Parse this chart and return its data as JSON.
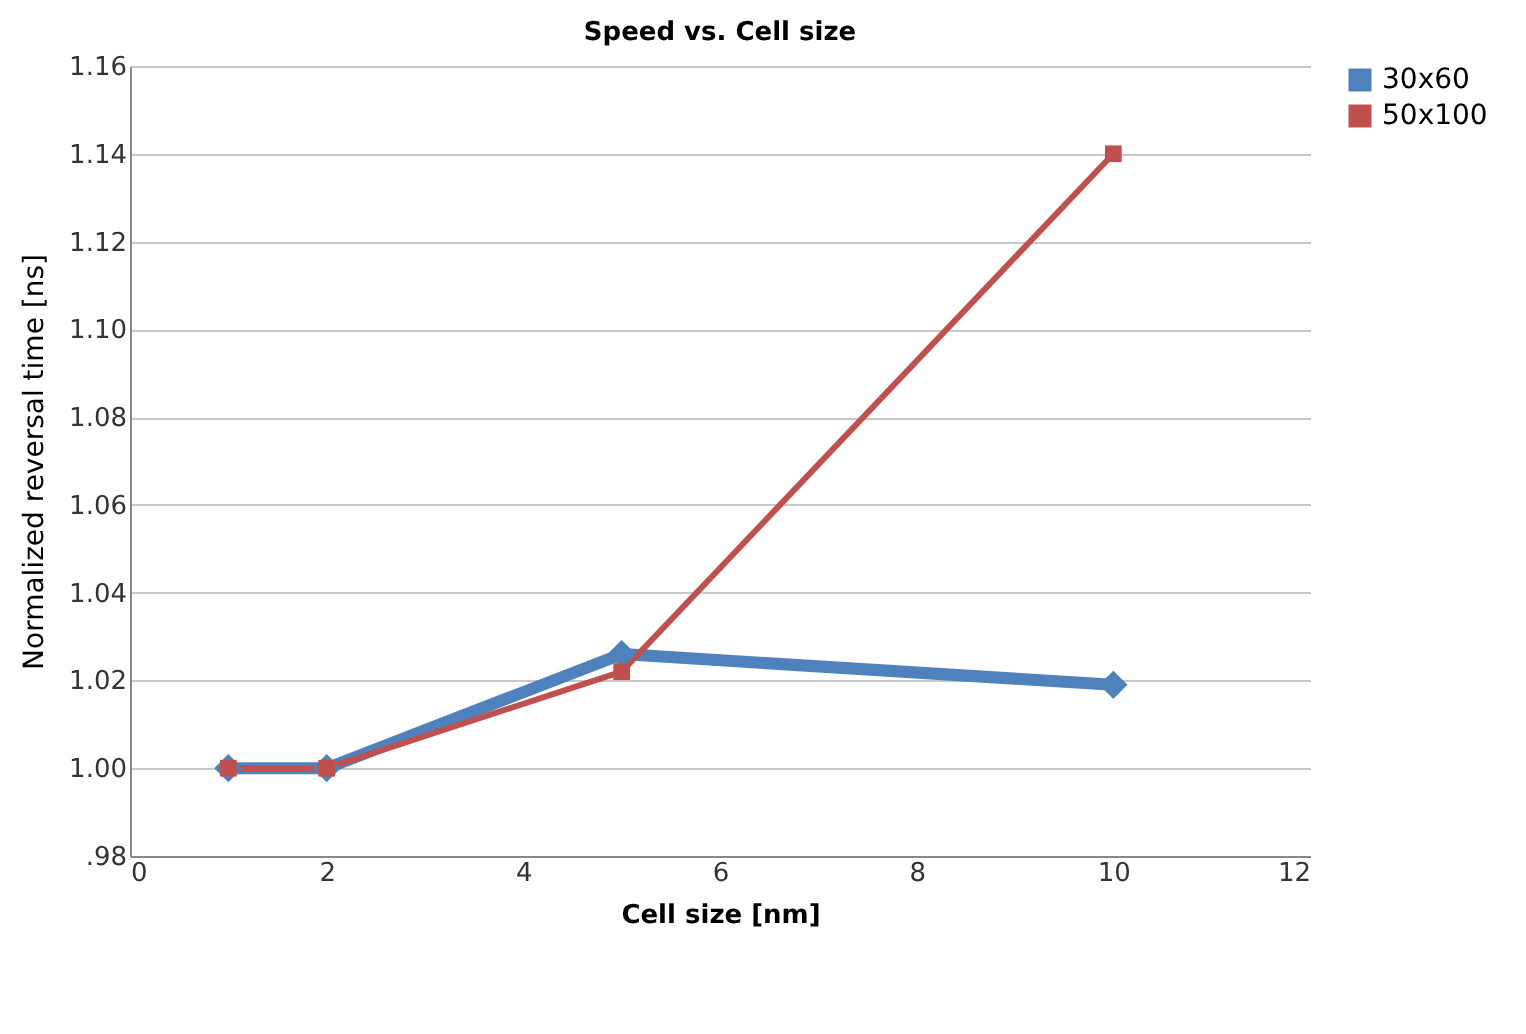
{
  "chart_data": {
    "type": "line",
    "title": "Speed vs. Cell size",
    "xlabel": "Cell size [nm]",
    "ylabel": "Normalized reversal time [ns]",
    "x": [
      1,
      2,
      5,
      10
    ],
    "series": [
      {
        "name": "30x60",
        "color": "#4f81bd",
        "marker": "diamond",
        "values": [
          1.0,
          1.0,
          1.026,
          1.019
        ]
      },
      {
        "name": "50x100",
        "color": "#c0504d",
        "marker": "square",
        "values": [
          1.0,
          1.0,
          1.022,
          1.14
        ]
      }
    ],
    "xlim": [
      0,
      12
    ],
    "xticks": [
      0,
      2,
      4,
      6,
      8,
      10,
      12
    ],
    "ylim": [
      0.98,
      1.16
    ],
    "yticks": [
      {
        "value": 0.98,
        "label": ".98"
      },
      {
        "value": 1.0,
        "label": "1.00"
      },
      {
        "value": 1.02,
        "label": "1.02"
      },
      {
        "value": 1.04,
        "label": "1.04"
      },
      {
        "value": 1.06,
        "label": "1.06"
      },
      {
        "value": 1.08,
        "label": "1.08"
      },
      {
        "value": 1.1,
        "label": "1.10"
      },
      {
        "value": 1.12,
        "label": "1.12"
      },
      {
        "value": 1.14,
        "label": "1.14"
      },
      {
        "value": 1.16,
        "label": "1.16"
      }
    ],
    "grid": "y",
    "legend": "right",
    "line_style": "solid"
  }
}
